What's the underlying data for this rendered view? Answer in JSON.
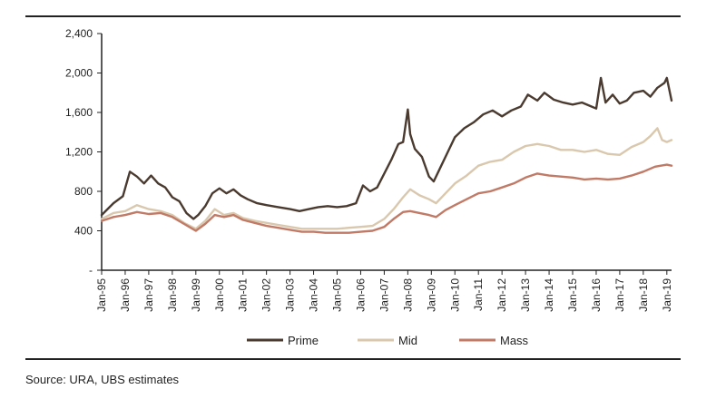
{
  "chart_data": {
    "type": "line",
    "x_labels": [
      "Jan-95",
      "Jan-96",
      "Jan-97",
      "Jan-98",
      "Jan-99",
      "Jan-00",
      "Jan-01",
      "Jan-02",
      "Jan-03",
      "Jan-04",
      "Jan-05",
      "Jan-06",
      "Jan-07",
      "Jan-08",
      "Jan-09",
      "Jan-10",
      "Jan-11",
      "Jan-12",
      "Jan-13",
      "Jan-14",
      "Jan-15",
      "Jan-16",
      "Jan-17",
      "Jan-18",
      "Jan-19"
    ],
    "x_range": [
      1995,
      2019.2
    ],
    "y_ticks": [
      "-",
      "400",
      "800",
      "1,200",
      "1,600",
      "2,000",
      "2,400"
    ],
    "y_tick_values": [
      0,
      400,
      800,
      1200,
      1600,
      2000,
      2400
    ],
    "ylim": [
      0,
      2400
    ],
    "grid": false,
    "legend_position": "bottom",
    "series": [
      {
        "name": "Prime",
        "color": "#4a3a2f",
        "points": [
          [
            1995.0,
            560
          ],
          [
            1995.5,
            680
          ],
          [
            1995.9,
            750
          ],
          [
            1996.2,
            1000
          ],
          [
            1996.5,
            950
          ],
          [
            1996.8,
            880
          ],
          [
            1997.1,
            960
          ],
          [
            1997.4,
            880
          ],
          [
            1997.7,
            840
          ],
          [
            1998.0,
            740
          ],
          [
            1998.3,
            700
          ],
          [
            1998.6,
            580
          ],
          [
            1998.9,
            520
          ],
          [
            1999.1,
            560
          ],
          [
            1999.4,
            650
          ],
          [
            1999.7,
            780
          ],
          [
            2000.0,
            830
          ],
          [
            2000.3,
            780
          ],
          [
            2000.6,
            820
          ],
          [
            2000.9,
            760
          ],
          [
            2001.2,
            720
          ],
          [
            2001.6,
            680
          ],
          [
            2002.0,
            660
          ],
          [
            2002.5,
            640
          ],
          [
            2003.0,
            620
          ],
          [
            2003.4,
            600
          ],
          [
            2003.8,
            620
          ],
          [
            2004.2,
            640
          ],
          [
            2004.6,
            650
          ],
          [
            2005.0,
            640
          ],
          [
            2005.4,
            650
          ],
          [
            2005.8,
            680
          ],
          [
            2006.1,
            860
          ],
          [
            2006.4,
            800
          ],
          [
            2006.7,
            840
          ],
          [
            2007.0,
            980
          ],
          [
            2007.3,
            1120
          ],
          [
            2007.6,
            1280
          ],
          [
            2007.8,
            1300
          ],
          [
            2008.0,
            1630
          ],
          [
            2008.1,
            1380
          ],
          [
            2008.3,
            1230
          ],
          [
            2008.6,
            1150
          ],
          [
            2008.9,
            950
          ],
          [
            2009.1,
            900
          ],
          [
            2009.4,
            1050
          ],
          [
            2009.7,
            1200
          ],
          [
            2010.0,
            1350
          ],
          [
            2010.4,
            1440
          ],
          [
            2010.8,
            1500
          ],
          [
            2011.2,
            1580
          ],
          [
            2011.6,
            1620
          ],
          [
            2012.0,
            1560
          ],
          [
            2012.4,
            1620
          ],
          [
            2012.8,
            1660
          ],
          [
            2013.1,
            1780
          ],
          [
            2013.5,
            1720
          ],
          [
            2013.8,
            1800
          ],
          [
            2014.2,
            1730
          ],
          [
            2014.6,
            1700
          ],
          [
            2015.0,
            1680
          ],
          [
            2015.4,
            1700
          ],
          [
            2015.8,
            1660
          ],
          [
            2016.0,
            1640
          ],
          [
            2016.2,
            1950
          ],
          [
            2016.4,
            1700
          ],
          [
            2016.7,
            1780
          ],
          [
            2017.0,
            1690
          ],
          [
            2017.3,
            1720
          ],
          [
            2017.6,
            1800
          ],
          [
            2018.0,
            1820
          ],
          [
            2018.3,
            1760
          ],
          [
            2018.6,
            1850
          ],
          [
            2018.9,
            1900
          ],
          [
            2019.0,
            1950
          ],
          [
            2019.2,
            1720
          ]
        ]
      },
      {
        "name": "Mid",
        "color": "#d9c8ad",
        "points": [
          [
            1995.0,
            520
          ],
          [
            1995.5,
            580
          ],
          [
            1996.0,
            600
          ],
          [
            1996.5,
            660
          ],
          [
            1997.0,
            620
          ],
          [
            1997.5,
            600
          ],
          [
            1998.0,
            560
          ],
          [
            1998.5,
            480
          ],
          [
            1999.0,
            420
          ],
          [
            1999.4,
            500
          ],
          [
            1999.8,
            620
          ],
          [
            2000.2,
            560
          ],
          [
            2000.6,
            580
          ],
          [
            2001.0,
            530
          ],
          [
            2001.5,
            500
          ],
          [
            2002.0,
            480
          ],
          [
            2002.5,
            460
          ],
          [
            2003.0,
            440
          ],
          [
            2003.5,
            420
          ],
          [
            2004.0,
            420
          ],
          [
            2004.5,
            420
          ],
          [
            2005.0,
            420
          ],
          [
            2005.5,
            430
          ],
          [
            2006.0,
            440
          ],
          [
            2006.5,
            450
          ],
          [
            2007.0,
            520
          ],
          [
            2007.4,
            620
          ],
          [
            2007.8,
            740
          ],
          [
            2008.1,
            820
          ],
          [
            2008.5,
            760
          ],
          [
            2008.9,
            720
          ],
          [
            2009.2,
            680
          ],
          [
            2009.6,
            780
          ],
          [
            2010.0,
            880
          ],
          [
            2010.5,
            960
          ],
          [
            2011.0,
            1060
          ],
          [
            2011.5,
            1100
          ],
          [
            2012.0,
            1120
          ],
          [
            2012.5,
            1200
          ],
          [
            2013.0,
            1260
          ],
          [
            2013.5,
            1280
          ],
          [
            2014.0,
            1260
          ],
          [
            2014.5,
            1220
          ],
          [
            2015.0,
            1220
          ],
          [
            2015.5,
            1200
          ],
          [
            2016.0,
            1220
          ],
          [
            2016.5,
            1180
          ],
          [
            2017.0,
            1170
          ],
          [
            2017.5,
            1250
          ],
          [
            2018.0,
            1300
          ],
          [
            2018.3,
            1360
          ],
          [
            2018.6,
            1440
          ],
          [
            2018.8,
            1320
          ],
          [
            2019.0,
            1300
          ],
          [
            2019.2,
            1320
          ]
        ]
      },
      {
        "name": "Mass",
        "color": "#c07a66",
        "points": [
          [
            1995.0,
            500
          ],
          [
            1995.5,
            540
          ],
          [
            1996.0,
            560
          ],
          [
            1996.5,
            590
          ],
          [
            1997.0,
            570
          ],
          [
            1997.5,
            580
          ],
          [
            1998.0,
            540
          ],
          [
            1998.5,
            470
          ],
          [
            1999.0,
            400
          ],
          [
            1999.4,
            470
          ],
          [
            1999.8,
            560
          ],
          [
            2000.2,
            540
          ],
          [
            2000.6,
            560
          ],
          [
            2001.0,
            510
          ],
          [
            2001.5,
            480
          ],
          [
            2002.0,
            450
          ],
          [
            2002.5,
            430
          ],
          [
            2003.0,
            410
          ],
          [
            2003.5,
            390
          ],
          [
            2004.0,
            390
          ],
          [
            2004.5,
            380
          ],
          [
            2005.0,
            380
          ],
          [
            2005.5,
            380
          ],
          [
            2006.0,
            390
          ],
          [
            2006.5,
            400
          ],
          [
            2007.0,
            440
          ],
          [
            2007.4,
            520
          ],
          [
            2007.8,
            590
          ],
          [
            2008.1,
            600
          ],
          [
            2008.5,
            580
          ],
          [
            2008.9,
            560
          ],
          [
            2009.2,
            540
          ],
          [
            2009.6,
            610
          ],
          [
            2010.0,
            660
          ],
          [
            2010.5,
            720
          ],
          [
            2011.0,
            780
          ],
          [
            2011.5,
            800
          ],
          [
            2012.0,
            840
          ],
          [
            2012.5,
            880
          ],
          [
            2013.0,
            940
          ],
          [
            2013.5,
            980
          ],
          [
            2014.0,
            960
          ],
          [
            2014.5,
            950
          ],
          [
            2015.0,
            940
          ],
          [
            2015.5,
            920
          ],
          [
            2016.0,
            930
          ],
          [
            2016.5,
            920
          ],
          [
            2017.0,
            930
          ],
          [
            2017.5,
            960
          ],
          [
            2018.0,
            1000
          ],
          [
            2018.5,
            1050
          ],
          [
            2019.0,
            1070
          ],
          [
            2019.2,
            1060
          ]
        ]
      }
    ]
  },
  "source": "Source:  URA, UBS estimates"
}
